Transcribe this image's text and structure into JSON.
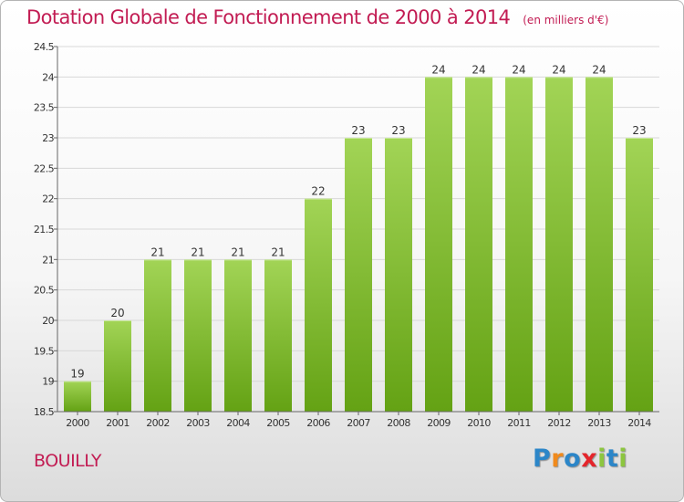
{
  "title": "Dotation Globale de Fonctionnement de 2000 à 2014",
  "unit": "(en milliers d'€)",
  "location": "BOUILLY",
  "logo": {
    "text": "Proxiti",
    "colors": [
      "#2c86c8",
      "#f08a1c",
      "#2c86c8",
      "#e4252b",
      "#8cc63f",
      "#2c86c8",
      "#8cc63f"
    ]
  },
  "colors": {
    "title": "#c21c53",
    "bar_top": "#a2d456",
    "bar_bottom": "#64a214",
    "grid": "#d8d8d8"
  },
  "chart_data": {
    "type": "bar",
    "categories": [
      "2000",
      "2001",
      "2002",
      "2003",
      "2004",
      "2005",
      "2006",
      "2007",
      "2008",
      "2009",
      "2010",
      "2011",
      "2012",
      "2013",
      "2014"
    ],
    "values": [
      19,
      20,
      21,
      21,
      21,
      21,
      22,
      23,
      23,
      24,
      24,
      24,
      24,
      24,
      23
    ],
    "data_labels": [
      "19",
      "20",
      "21",
      "21",
      "21",
      "21",
      "22",
      "23",
      "23",
      "24",
      "24",
      "24",
      "24",
      "24",
      "23"
    ],
    "ylim": [
      18.5,
      24.5
    ],
    "yticks": [
      18.5,
      19,
      19.5,
      20,
      20.5,
      21,
      21.5,
      22,
      22.5,
      23,
      23.5,
      24,
      24.5
    ],
    "ytick_labels": [
      "18.5",
      "19",
      "19.5",
      "20",
      "20.5",
      "21",
      "21.5",
      "22",
      "22.5",
      "23",
      "23.5",
      "24",
      "24.5"
    ],
    "grid": true
  }
}
